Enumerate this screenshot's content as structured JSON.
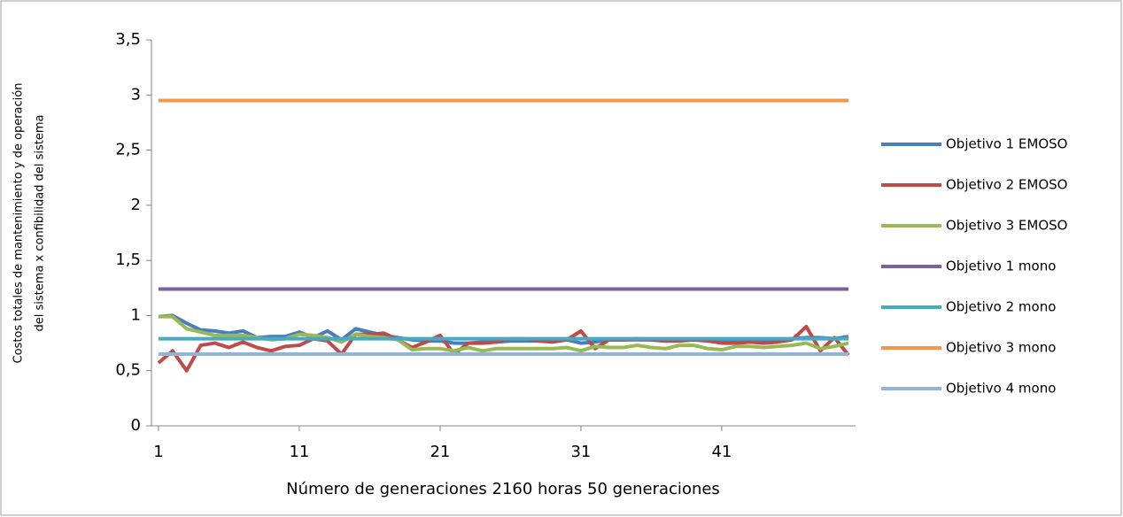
{
  "chart_data": {
    "type": "line",
    "ylabel": [
      "Costos totales de mantenimiento y de operación",
      "del sistema x confibilidad del sistema"
    ],
    "xlabel": "Número de generaciones 2160 horas 50 generaciones",
    "x": [
      1,
      2,
      3,
      4,
      5,
      6,
      7,
      8,
      9,
      10,
      11,
      12,
      13,
      14,
      15,
      16,
      17,
      18,
      19,
      20,
      21,
      22,
      23,
      24,
      25,
      26,
      27,
      28,
      29,
      30,
      31,
      32,
      33,
      34,
      35,
      36,
      37,
      38,
      39,
      40,
      41,
      42,
      43,
      44,
      45,
      46,
      47,
      48,
      49,
      50
    ],
    "xlim": [
      0.5,
      50.5
    ],
    "xticks": [
      1,
      11,
      21,
      31,
      41
    ],
    "ylim": [
      0,
      3.5
    ],
    "yticks": [
      0,
      {
        "value": 0.5,
        "label": "0,5"
      },
      1,
      {
        "value": 1.5,
        "label": "1,5"
      },
      2,
      {
        "value": 2.5,
        "label": "2,5"
      },
      3,
      {
        "value": 3.5,
        "label": "3,5"
      }
    ],
    "grid": false,
    "legend": "right",
    "series": [
      {
        "name": "Objetivo 1 EMOSO",
        "color": "#4a7ebb",
        "values": [
          0.99,
          1.0,
          0.93,
          0.87,
          0.86,
          0.84,
          0.86,
          0.8,
          0.81,
          0.81,
          0.85,
          0.8,
          0.86,
          0.78,
          0.88,
          0.85,
          0.82,
          0.8,
          0.78,
          0.77,
          0.77,
          0.75,
          0.75,
          0.76,
          0.76,
          0.77,
          0.77,
          0.77,
          0.77,
          0.78,
          0.75,
          0.76,
          0.78,
          0.78,
          0.78,
          0.78,
          0.77,
          0.78,
          0.78,
          0.78,
          0.77,
          0.77,
          0.77,
          0.77,
          0.78,
          0.79,
          0.8,
          0.8,
          0.79,
          0.81
        ]
      },
      {
        "name": "Objetivo 2 EMOSO",
        "color": "#be4b48",
        "values": [
          0.57,
          0.68,
          0.5,
          0.73,
          0.75,
          0.71,
          0.76,
          0.71,
          0.68,
          0.72,
          0.73,
          0.79,
          0.77,
          0.65,
          0.83,
          0.83,
          0.84,
          0.78,
          0.71,
          0.76,
          0.82,
          0.65,
          0.75,
          0.75,
          0.76,
          0.79,
          0.79,
          0.77,
          0.76,
          0.78,
          0.86,
          0.7,
          0.78,
          0.78,
          0.79,
          0.78,
          0.77,
          0.77,
          0.78,
          0.77,
          0.75,
          0.75,
          0.76,
          0.75,
          0.76,
          0.78,
          0.9,
          0.68,
          0.8,
          0.64
        ]
      },
      {
        "name": "Objetivo 3 EMOSO",
        "color": "#98b954",
        "values": [
          0.99,
          0.99,
          0.88,
          0.85,
          0.82,
          0.82,
          0.82,
          0.8,
          0.78,
          0.79,
          0.83,
          0.82,
          0.8,
          0.76,
          0.83,
          0.81,
          0.8,
          0.78,
          0.69,
          0.7,
          0.7,
          0.68,
          0.71,
          0.68,
          0.7,
          0.7,
          0.7,
          0.7,
          0.7,
          0.71,
          0.68,
          0.72,
          0.71,
          0.71,
          0.73,
          0.71,
          0.7,
          0.73,
          0.73,
          0.7,
          0.69,
          0.72,
          0.72,
          0.71,
          0.72,
          0.73,
          0.75,
          0.7,
          0.72,
          0.75
        ]
      },
      {
        "name": "Objetivo 1 mono",
        "color": "#7d60a0",
        "values": [
          1.24,
          1.24,
          1.24,
          1.24,
          1.24,
          1.24,
          1.24,
          1.24,
          1.24,
          1.24,
          1.24,
          1.24,
          1.24,
          1.24,
          1.24,
          1.24,
          1.24,
          1.24,
          1.24,
          1.24,
          1.24,
          1.24,
          1.24,
          1.24,
          1.24,
          1.24,
          1.24,
          1.24,
          1.24,
          1.24,
          1.24,
          1.24,
          1.24,
          1.24,
          1.24,
          1.24,
          1.24,
          1.24,
          1.24,
          1.24,
          1.24,
          1.24,
          1.24,
          1.24,
          1.24,
          1.24,
          1.24,
          1.24,
          1.24,
          1.24
        ]
      },
      {
        "name": "Objetivo 2 mono",
        "color": "#46aac5",
        "values": [
          0.79,
          0.79,
          0.79,
          0.79,
          0.79,
          0.79,
          0.79,
          0.79,
          0.79,
          0.79,
          0.79,
          0.79,
          0.79,
          0.79,
          0.79,
          0.79,
          0.79,
          0.79,
          0.79,
          0.79,
          0.79,
          0.79,
          0.79,
          0.79,
          0.79,
          0.79,
          0.79,
          0.79,
          0.79,
          0.79,
          0.79,
          0.79,
          0.79,
          0.79,
          0.79,
          0.79,
          0.79,
          0.79,
          0.79,
          0.79,
          0.79,
          0.79,
          0.79,
          0.79,
          0.79,
          0.79,
          0.79,
          0.79,
          0.79,
          0.79
        ]
      },
      {
        "name": "Objetivo 3 mono",
        "color": "#f79646",
        "values": [
          2.95,
          2.95,
          2.95,
          2.95,
          2.95,
          2.95,
          2.95,
          2.95,
          2.95,
          2.95,
          2.95,
          2.95,
          2.95,
          2.95,
          2.95,
          2.95,
          2.95,
          2.95,
          2.95,
          2.95,
          2.95,
          2.95,
          2.95,
          2.95,
          2.95,
          2.95,
          2.95,
          2.95,
          2.95,
          2.95,
          2.95,
          2.95,
          2.95,
          2.95,
          2.95,
          2.95,
          2.95,
          2.95,
          2.95,
          2.95,
          2.95,
          2.95,
          2.95,
          2.95,
          2.95,
          2.95,
          2.95,
          2.95,
          2.95,
          2.95
        ]
      },
      {
        "name": "Objetivo 4 mono",
        "color": "#95b3d7",
        "values": [
          0.65,
          0.65,
          0.65,
          0.65,
          0.65,
          0.65,
          0.65,
          0.65,
          0.65,
          0.65,
          0.65,
          0.65,
          0.65,
          0.65,
          0.65,
          0.65,
          0.65,
          0.65,
          0.65,
          0.65,
          0.65,
          0.65,
          0.65,
          0.65,
          0.65,
          0.65,
          0.65,
          0.65,
          0.65,
          0.65,
          0.65,
          0.65,
          0.65,
          0.65,
          0.65,
          0.65,
          0.65,
          0.65,
          0.65,
          0.65,
          0.65,
          0.65,
          0.65,
          0.65,
          0.65,
          0.65,
          0.65,
          0.65,
          0.65,
          0.65
        ]
      }
    ]
  }
}
